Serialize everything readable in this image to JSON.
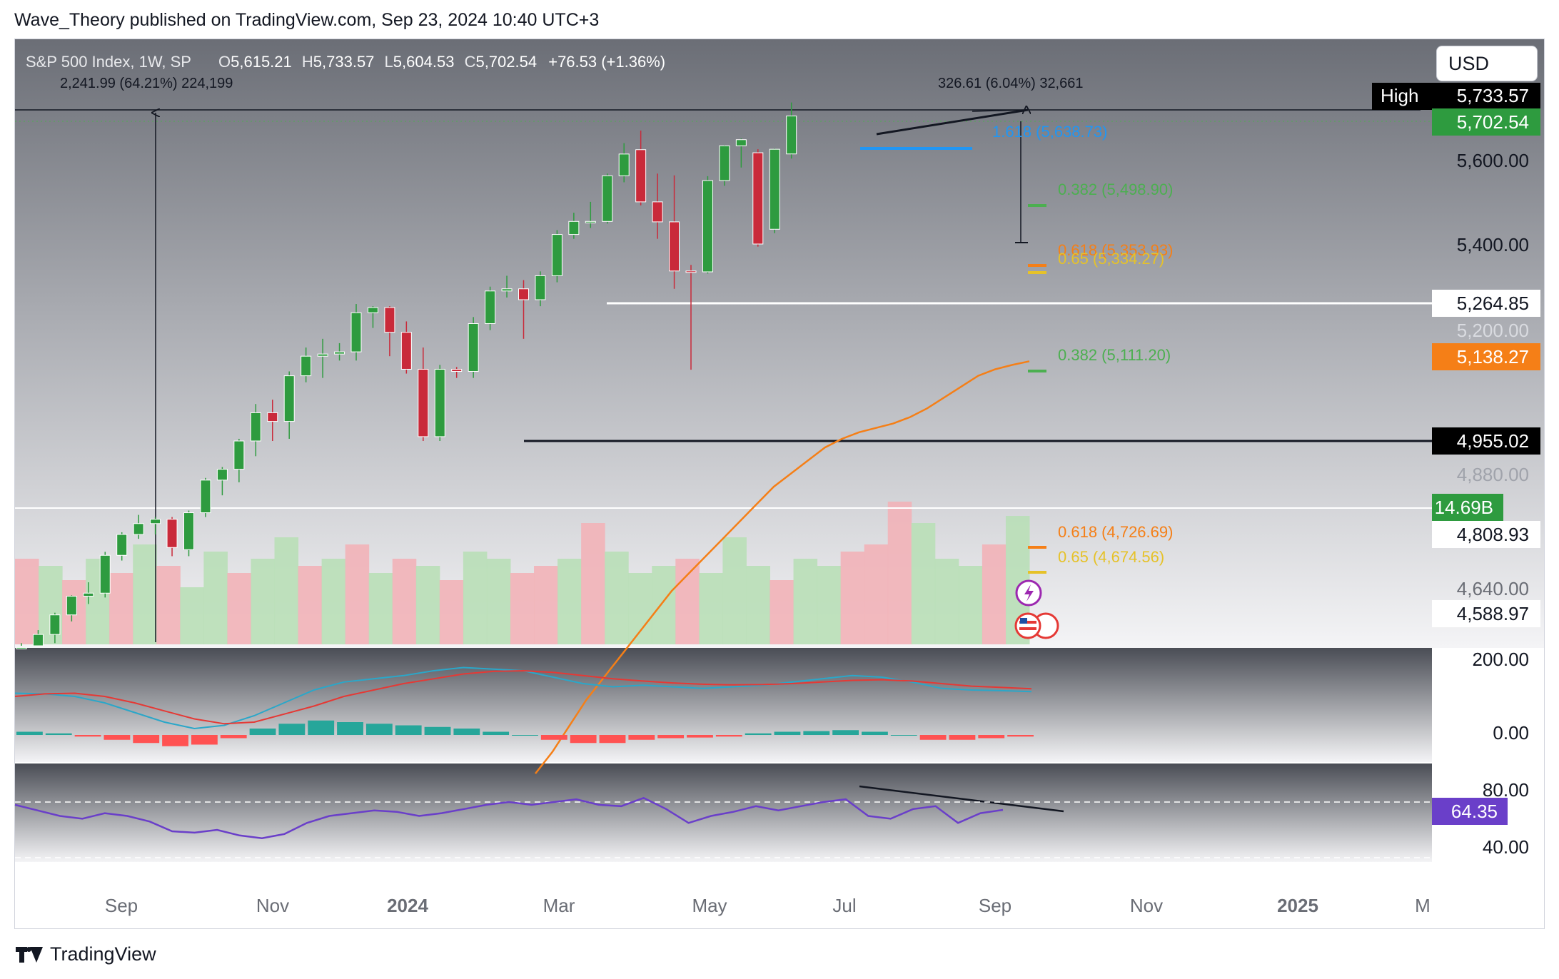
{
  "publisher_line": "Wave_Theory published on TradingView.com, Sep 23, 2024 10:40 UTC+3",
  "footer_brand": "TradingView",
  "currency_button": "USD",
  "legend": {
    "symbol": "S&P 500 Index, 1W, SP",
    "o_label": "O",
    "o_value": "5,615.21",
    "h_label": "H",
    "h_value": "5,733.57",
    "l_label": "L",
    "l_value": "5,604.53",
    "c_label": "C",
    "c_value": "5,702.54",
    "change": "+76.53 (+1.36%)"
  },
  "measure_labels": {
    "left": "2,241.99 (64.21%) 224,199",
    "right": "326.61 (6.04%) 32,661"
  },
  "colors": {
    "up": "#2e9b3f",
    "down": "#c92a3a",
    "ema": "#f57f17",
    "fib_green": "#4caf50",
    "fib_orange": "#f57f17",
    "fib_yellow": "#e6c229",
    "fib_blue": "#2196f3",
    "macd": "#2aa7c9",
    "signal": "#e53935",
    "rsi": "#6a3fc9"
  },
  "chart_data": {
    "type": "candlestick",
    "timeframe": "1W",
    "x_axis_labels": [
      "Sep",
      "Nov",
      "2024",
      "Mar",
      "May",
      "Jul",
      "Sep",
      "Nov",
      "2025",
      "M"
    ],
    "price_axis_ticks": [
      "5,600.00",
      "5,400.00",
      "5,200.00",
      "4,880.00",
      "4,640.00"
    ],
    "candles": [
      {
        "o": 4360,
        "h": 4490,
        "l": 4330,
        "c": 4480
      },
      {
        "o": 4480,
        "h": 4520,
        "l": 4440,
        "c": 4510
      },
      {
        "o": 4510,
        "h": 4560,
        "l": 4490,
        "c": 4555
      },
      {
        "o": 4555,
        "h": 4600,
        "l": 4540,
        "c": 4598
      },
      {
        "o": 4598,
        "h": 4630,
        "l": 4580,
        "c": 4605
      },
      {
        "o": 4605,
        "h": 4700,
        "l": 4595,
        "c": 4692
      },
      {
        "o": 4692,
        "h": 4745,
        "l": 4680,
        "c": 4740
      },
      {
        "o": 4740,
        "h": 4785,
        "l": 4730,
        "c": 4765
      },
      {
        "o": 4765,
        "h": 4780,
        "l": 4740,
        "c": 4775
      },
      {
        "o": 4775,
        "h": 4780,
        "l": 4690,
        "c": 4710
      },
      {
        "o": 4705,
        "h": 4795,
        "l": 4690,
        "c": 4790
      },
      {
        "o": 4790,
        "h": 4870,
        "l": 4780,
        "c": 4865
      },
      {
        "o": 4865,
        "h": 4895,
        "l": 4830,
        "c": 4890
      },
      {
        "o": 4890,
        "h": 4960,
        "l": 4860,
        "c": 4955
      },
      {
        "o": 4955,
        "h": 5040,
        "l": 4920,
        "c": 5020
      },
      {
        "o": 5020,
        "h": 5050,
        "l": 4955,
        "c": 5000
      },
      {
        "o": 5000,
        "h": 5115,
        "l": 4960,
        "c": 5105
      },
      {
        "o": 5105,
        "h": 5170,
        "l": 5090,
        "c": 5150
      },
      {
        "o": 5150,
        "h": 5190,
        "l": 5100,
        "c": 5155
      },
      {
        "o": 5155,
        "h": 5180,
        "l": 5140,
        "c": 5160
      },
      {
        "o": 5160,
        "h": 5270,
        "l": 5140,
        "c": 5250
      },
      {
        "o": 5250,
        "h": 5265,
        "l": 5215,
        "c": 5262
      },
      {
        "o": 5262,
        "h": 5265,
        "l": 5150,
        "c": 5205
      },
      {
        "o": 5205,
        "h": 5230,
        "l": 5110,
        "c": 5120
      },
      {
        "o": 5120,
        "h": 5170,
        "l": 4955,
        "c": 4965
      },
      {
        "o": 4965,
        "h": 5130,
        "l": 4955,
        "c": 5120
      },
      {
        "o": 5120,
        "h": 5125,
        "l": 5100,
        "c": 5115
      },
      {
        "o": 5115,
        "h": 5240,
        "l": 5100,
        "c": 5225
      },
      {
        "o": 5225,
        "h": 5310,
        "l": 5210,
        "c": 5300
      },
      {
        "o": 5300,
        "h": 5335,
        "l": 5285,
        "c": 5305
      },
      {
        "o": 5305,
        "h": 5325,
        "l": 5190,
        "c": 5280
      },
      {
        "o": 5280,
        "h": 5345,
        "l": 5265,
        "c": 5335
      },
      {
        "o": 5335,
        "h": 5440,
        "l": 5320,
        "c": 5430
      },
      {
        "o": 5430,
        "h": 5480,
        "l": 5420,
        "c": 5460
      },
      {
        "o": 5460,
        "h": 5505,
        "l": 5445,
        "c": 5460
      },
      {
        "o": 5460,
        "h": 5570,
        "l": 5455,
        "c": 5565
      },
      {
        "o": 5565,
        "h": 5640,
        "l": 5550,
        "c": 5615
      },
      {
        "o": 5625,
        "h": 5669,
        "l": 5497,
        "c": 5505
      },
      {
        "o": 5505,
        "h": 5570,
        "l": 5420,
        "c": 5459
      },
      {
        "o": 5459,
        "h": 5566,
        "l": 5305,
        "c": 5346
      },
      {
        "o": 5346,
        "h": 5360,
        "l": 5119,
        "c": 5344
      },
      {
        "o": 5344,
        "h": 5564,
        "l": 5340,
        "c": 5554
      },
      {
        "o": 5554,
        "h": 5636,
        "l": 5542,
        "c": 5634
      },
      {
        "o": 5634,
        "h": 5651,
        "l": 5584,
        "c": 5648
      },
      {
        "o": 5618,
        "h": 5626,
        "l": 5402,
        "c": 5408
      },
      {
        "o": 5442,
        "h": 5628,
        "l": 5433,
        "c": 5626
      },
      {
        "o": 5615.21,
        "h": 5733.57,
        "l": 5604.53,
        "c": 5702.54
      }
    ],
    "ema": {
      "name": "",
      "values": [
        4190,
        4240,
        4300,
        4360,
        4410,
        4460,
        4510,
        4560,
        4610,
        4650,
        4690,
        4730,
        4770,
        4810,
        4850,
        4880,
        4910,
        4940,
        4960,
        4975,
        4985,
        4995,
        5010,
        5030,
        5055,
        5080,
        5105,
        5120,
        5130,
        5138.27
      ]
    },
    "volume_bars": [
      {
        "v": 0.6,
        "up": false
      },
      {
        "v": 0.55,
        "up": true
      },
      {
        "v": 0.45,
        "up": false
      },
      {
        "v": 0.6,
        "up": true
      },
      {
        "v": 0.5,
        "up": false
      },
      {
        "v": 0.7,
        "up": true
      },
      {
        "v": 0.55,
        "up": false
      },
      {
        "v": 0.4,
        "up": true
      },
      {
        "v": 0.65,
        "up": true
      },
      {
        "v": 0.5,
        "up": false
      },
      {
        "v": 0.6,
        "up": true
      },
      {
        "v": 0.75,
        "up": true
      },
      {
        "v": 0.55,
        "up": false
      },
      {
        "v": 0.6,
        "up": true
      },
      {
        "v": 0.7,
        "up": false
      },
      {
        "v": 0.5,
        "up": true
      },
      {
        "v": 0.6,
        "up": false
      },
      {
        "v": 0.55,
        "up": true
      },
      {
        "v": 0.45,
        "up": false
      },
      {
        "v": 0.65,
        "up": true
      },
      {
        "v": 0.6,
        "up": true
      },
      {
        "v": 0.5,
        "up": false
      },
      {
        "v": 0.55,
        "up": false
      },
      {
        "v": 0.6,
        "up": true
      },
      {
        "v": 0.85,
        "up": false
      },
      {
        "v": 0.65,
        "up": true
      },
      {
        "v": 0.5,
        "up": true
      },
      {
        "v": 0.55,
        "up": true
      },
      {
        "v": 0.6,
        "up": false
      },
      {
        "v": 0.5,
        "up": true
      },
      {
        "v": 0.75,
        "up": true
      },
      {
        "v": 0.55,
        "up": true
      },
      {
        "v": 0.45,
        "up": false
      },
      {
        "v": 0.6,
        "up": true
      },
      {
        "v": 0.55,
        "up": true
      },
      {
        "v": 0.65,
        "up": false
      },
      {
        "v": 0.7,
        "up": false
      },
      {
        "v": 1.0,
        "up": false
      },
      {
        "v": 0.85,
        "up": true
      },
      {
        "v": 0.6,
        "up": true
      },
      {
        "v": 0.55,
        "up": true
      },
      {
        "v": 0.7,
        "up": false
      },
      {
        "v": 0.9,
        "up": true
      }
    ],
    "macd": {
      "axis_ticks": [
        "200.00",
        "0.00"
      ],
      "macd_line": [
        130,
        128,
        120,
        100,
        70,
        40,
        20,
        30,
        60,
        100,
        140,
        165,
        175,
        185,
        200,
        210,
        205,
        200,
        180,
        160,
        150,
        155,
        150,
        145,
        150,
        155,
        165,
        175,
        185,
        180,
        165,
        145,
        140,
        138,
        135
      ],
      "signal_line": [
        120,
        128,
        130,
        120,
        100,
        75,
        50,
        35,
        40,
        65,
        90,
        120,
        140,
        160,
        175,
        190,
        198,
        200,
        195,
        185,
        175,
        168,
        162,
        158,
        156,
        157,
        160,
        165,
        170,
        172,
        168,
        160,
        152,
        148,
        144
      ],
      "histogram": [
        10,
        5,
        -5,
        -15,
        -25,
        -35,
        -30,
        -10,
        20,
        35,
        45,
        40,
        35,
        30,
        25,
        20,
        10,
        0,
        -15,
        -25,
        -25,
        -15,
        -10,
        -8,
        -5,
        5,
        10,
        12,
        15,
        10,
        0,
        -15,
        -15,
        -10,
        -5
      ]
    },
    "rsi": {
      "axis_ticks": [
        "80.00",
        "40.00"
      ],
      "upper_band": 70,
      "lower_band": 30,
      "current_label": "64.35",
      "values": [
        68,
        64,
        60,
        58,
        62,
        60,
        56,
        49,
        48,
        50,
        46,
        44,
        47,
        55,
        60,
        62,
        64,
        63,
        60,
        62,
        65,
        68,
        70,
        68,
        70,
        72,
        68,
        67,
        73,
        65,
        55,
        60,
        63,
        67,
        64,
        67,
        70,
        72,
        60,
        58,
        65,
        67,
        55,
        62,
        64.35
      ]
    }
  },
  "price_levels": {
    "high_label": "High",
    "high_value": "5,733.57",
    "last_price": "5,702.54",
    "resistance_white": "5,264.85",
    "ema_value": "5,138.27",
    "support_black": "4,955.02",
    "volume_label": "14.69B",
    "level_4808": "4,808.93",
    "level_4588": "4,588.97"
  },
  "fib_labels": {
    "f1618": "1.618 (5,638.73)",
    "f0382_a": "0.382 (5,498.90)",
    "f0618_a": "0.618 (5,353.93)",
    "f065_a": "0.65 (5,334.27)",
    "f0382_b": "0.382 (5,111.20)",
    "f0618_b": "0.618 (4,726.69)",
    "f065_b": "0.65 (4,674.56)"
  }
}
